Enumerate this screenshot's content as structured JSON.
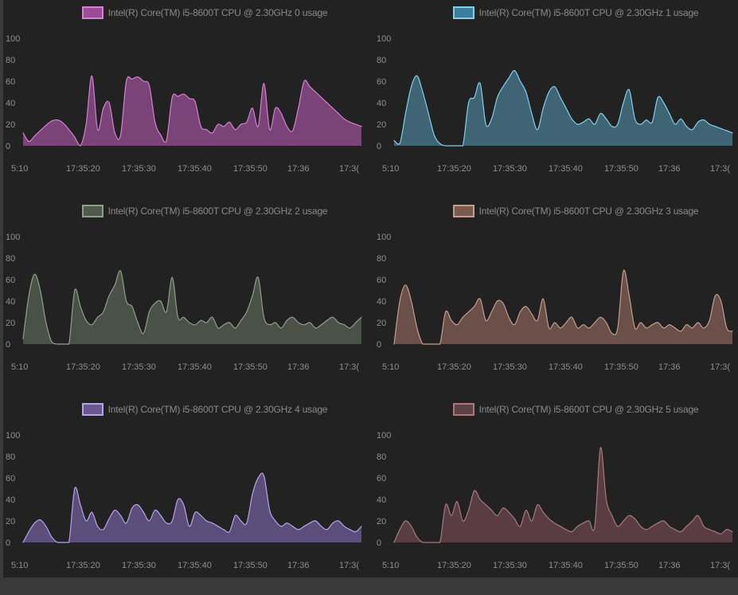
{
  "chart_data": [
    {
      "type": "area",
      "series": [
        {
          "name": "Intel(R) Core(TM) i5-8600T CPU @ 2.30GHz 0 usage",
          "x": [
            0,
            1,
            2,
            3,
            4,
            5,
            6,
            7,
            8,
            9,
            10,
            11,
            12,
            13,
            14,
            15,
            16,
            17,
            18,
            19,
            20,
            21,
            22,
            23,
            24,
            25,
            26,
            27,
            28,
            29,
            30,
            31,
            32,
            33,
            34,
            35,
            36,
            37,
            38,
            39,
            40,
            41,
            42,
            43,
            44,
            45,
            46,
            47,
            48,
            49,
            50,
            51,
            52,
            53,
            54,
            55,
            56,
            57,
            58,
            59
          ],
          "values": [
            12,
            4,
            9,
            14,
            19,
            23,
            24,
            21,
            15,
            8,
            0,
            20,
            65,
            15,
            35,
            40,
            12,
            10,
            60,
            62,
            64,
            60,
            56,
            22,
            10,
            5,
            45,
            46,
            48,
            44,
            41,
            18,
            15,
            12,
            20,
            18,
            22,
            15,
            20,
            22,
            35,
            18,
            58,
            15,
            35,
            30,
            18,
            14,
            35,
            60,
            55,
            50,
            45,
            40,
            35,
            30,
            25,
            22,
            20,
            18
          ]
        }
      ],
      "x_ticks": [
        "5:10",
        "17:35:20",
        "17:35:30",
        "17:35:40",
        "17:35:50",
        "17:36",
        "17:3("
      ],
      "y_ticks": [
        "100",
        "80",
        "60",
        "40",
        "20",
        "0"
      ],
      "ylim": [
        0,
        100
      ],
      "colors": {
        "fill": "#7a4478",
        "line": "#d87fd4",
        "swatch": "#9b4d98"
      }
    },
    {
      "type": "area",
      "series": [
        {
          "name": "Intel(R) Core(TM) i5-8600T CPU @ 2.30GHz 1 usage",
          "x": [
            0,
            1,
            2,
            3,
            4,
            5,
            6,
            7,
            8,
            9,
            10,
            11,
            12,
            13,
            14,
            15,
            16,
            17,
            18,
            19,
            20,
            21,
            22,
            23,
            24,
            25,
            26,
            27,
            28,
            29,
            30,
            31,
            32,
            33,
            34,
            35,
            36,
            37,
            38,
            39,
            40,
            41,
            42,
            43,
            44,
            45,
            46,
            47,
            48,
            49,
            50,
            51,
            52,
            53,
            54,
            55,
            56,
            57,
            58,
            59
          ],
          "values": [
            5,
            2,
            30,
            55,
            65,
            50,
            30,
            10,
            2,
            0,
            0,
            0,
            0,
            40,
            45,
            58,
            20,
            25,
            45,
            55,
            63,
            70,
            60,
            50,
            30,
            15,
            35,
            50,
            55,
            45,
            35,
            25,
            20,
            22,
            25,
            20,
            30,
            25,
            18,
            20,
            40,
            52,
            25,
            20,
            24,
            22,
            45,
            40,
            30,
            20,
            25,
            18,
            15,
            22,
            24,
            20,
            18,
            16,
            14,
            12
          ]
        }
      ],
      "x_ticks": [
        "5:10",
        "17:35:20",
        "17:35:30",
        "17:35:40",
        "17:35:50",
        "17:36",
        "17:3("
      ],
      "y_ticks": [
        "100",
        "80",
        "60",
        "40",
        "20",
        "0"
      ],
      "ylim": [
        0,
        100
      ],
      "colors": {
        "fill": "#3f6574",
        "line": "#7fd0ee",
        "swatch": "#3d7f9a"
      }
    },
    {
      "type": "area",
      "series": [
        {
          "name": "Intel(R) Core(TM) i5-8600T CPU @ 2.30GHz 2 usage",
          "x": [
            0,
            1,
            2,
            3,
            4,
            5,
            6,
            7,
            8,
            9,
            10,
            11,
            12,
            13,
            14,
            15,
            16,
            17,
            18,
            19,
            20,
            21,
            22,
            23,
            24,
            25,
            26,
            27,
            28,
            29,
            30,
            31,
            32,
            33,
            34,
            35,
            36,
            37,
            38,
            39,
            40,
            41,
            42,
            43,
            44,
            45,
            46,
            47,
            48,
            49,
            50,
            51,
            52,
            53,
            54,
            55,
            56,
            57,
            58,
            59
          ],
          "values": [
            5,
            45,
            65,
            50,
            20,
            2,
            0,
            0,
            0,
            50,
            35,
            22,
            18,
            25,
            30,
            45,
            55,
            68,
            40,
            35,
            20,
            10,
            30,
            38,
            40,
            30,
            62,
            25,
            25,
            20,
            18,
            22,
            20,
            25,
            15,
            18,
            20,
            15,
            22,
            30,
            45,
            62,
            25,
            18,
            20,
            15,
            22,
            25,
            20,
            18,
            20,
            15,
            18,
            22,
            25,
            20,
            18,
            15,
            20,
            25
          ]
        }
      ],
      "x_ticks": [
        "5:10",
        "17:35:20",
        "17:35:30",
        "17:35:40",
        "17:35:50",
        "17:36",
        "17:3("
      ],
      "y_ticks": [
        "100",
        "80",
        "60",
        "40",
        "20",
        "0"
      ],
      "ylim": [
        0,
        100
      ],
      "colors": {
        "fill": "#4a5248",
        "line": "#8f9e8c",
        "swatch": "#4f5a4d"
      }
    },
    {
      "type": "area",
      "series": [
        {
          "name": "Intel(R) Core(TM) i5-8600T CPU @ 2.30GHz 3 usage",
          "x": [
            0,
            1,
            2,
            3,
            4,
            5,
            6,
            7,
            8,
            9,
            10,
            11,
            12,
            13,
            14,
            15,
            16,
            17,
            18,
            19,
            20,
            21,
            22,
            23,
            24,
            25,
            26,
            27,
            28,
            29,
            30,
            31,
            32,
            33,
            34,
            35,
            36,
            37,
            38,
            39,
            40,
            41,
            42,
            43,
            44,
            45,
            46,
            47,
            48,
            49,
            50,
            51,
            52,
            53,
            54,
            55,
            56,
            57,
            58,
            59
          ],
          "values": [
            0,
            40,
            55,
            40,
            15,
            0,
            0,
            0,
            0,
            30,
            22,
            18,
            25,
            30,
            35,
            42,
            22,
            30,
            40,
            38,
            25,
            18,
            30,
            35,
            28,
            22,
            42,
            15,
            20,
            15,
            20,
            25,
            15,
            18,
            15,
            20,
            25,
            20,
            10,
            15,
            68,
            45,
            15,
            20,
            15,
            18,
            20,
            15,
            18,
            15,
            12,
            18,
            15,
            20,
            15,
            22,
            45,
            40,
            15,
            12
          ]
        }
      ],
      "x_ticks": [
        "5:10",
        "17:35:20",
        "17:35:30",
        "17:35:40",
        "17:35:50",
        "17:36",
        "17:3("
      ],
      "y_ticks": [
        "100",
        "80",
        "60",
        "40",
        "20",
        "0"
      ],
      "ylim": [
        0,
        100
      ],
      "colors": {
        "fill": "#6a5048",
        "line": "#c69c8c",
        "swatch": "#7a5a4e"
      }
    },
    {
      "type": "area",
      "series": [
        {
          "name": "Intel(R) Core(TM) i5-8600T CPU @ 2.30GHz 4 usage",
          "x": [
            0,
            1,
            2,
            3,
            4,
            5,
            6,
            7,
            8,
            9,
            10,
            11,
            12,
            13,
            14,
            15,
            16,
            17,
            18,
            19,
            20,
            21,
            22,
            23,
            24,
            25,
            26,
            27,
            28,
            29,
            30,
            31,
            32,
            33,
            34,
            35,
            36,
            37,
            38,
            39,
            40,
            41,
            42,
            43,
            44,
            45,
            46,
            47,
            48,
            49,
            50,
            51,
            52,
            53,
            54,
            55,
            56,
            57,
            58,
            59
          ],
          "values": [
            0,
            10,
            18,
            21,
            15,
            5,
            0,
            0,
            0,
            50,
            35,
            20,
            28,
            15,
            12,
            22,
            30,
            25,
            18,
            32,
            35,
            28,
            20,
            30,
            25,
            18,
            20,
            40,
            35,
            15,
            28,
            25,
            20,
            18,
            15,
            12,
            10,
            25,
            20,
            18,
            45,
            60,
            62,
            30,
            20,
            15,
            18,
            15,
            12,
            15,
            18,
            20,
            15,
            12,
            18,
            20,
            15,
            12,
            10,
            15
          ]
        }
      ],
      "x_ticks": [
        "5:10",
        "17:35:20",
        "17:35:30",
        "17:35:40",
        "17:35:50",
        "17:36",
        "17:3("
      ],
      "y_ticks": [
        "100",
        "80",
        "60",
        "40",
        "20",
        "0"
      ],
      "ylim": [
        0,
        100
      ],
      "colors": {
        "fill": "#5c4d7a",
        "line": "#b4a4ee",
        "swatch": "#6a5690"
      }
    },
    {
      "type": "area",
      "series": [
        {
          "name": "Intel(R) Core(TM) i5-8600T CPU @ 2.30GHz 5 usage",
          "x": [
            0,
            1,
            2,
            3,
            4,
            5,
            6,
            7,
            8,
            9,
            10,
            11,
            12,
            13,
            14,
            15,
            16,
            17,
            18,
            19,
            20,
            21,
            22,
            23,
            24,
            25,
            26,
            27,
            28,
            29,
            30,
            31,
            32,
            33,
            34,
            35,
            36,
            37,
            38,
            39,
            40,
            41,
            42,
            43,
            44,
            45,
            46,
            47,
            48,
            49,
            50,
            51,
            52,
            53,
            54,
            55,
            56,
            57,
            58,
            59
          ],
          "values": [
            0,
            12,
            20,
            15,
            5,
            0,
            0,
            0,
            0,
            35,
            25,
            38,
            20,
            30,
            48,
            40,
            35,
            30,
            25,
            32,
            28,
            22,
            15,
            30,
            20,
            35,
            28,
            22,
            18,
            15,
            12,
            10,
            15,
            18,
            20,
            15,
            88,
            40,
            25,
            15,
            20,
            25,
            22,
            15,
            12,
            15,
            18,
            20,
            15,
            12,
            10,
            15,
            20,
            25,
            15,
            12,
            10,
            8,
            12,
            10
          ]
        }
      ],
      "x_ticks": [
        "5:10",
        "17:35:20",
        "17:35:30",
        "17:35:40",
        "17:35:50",
        "17:36",
        "17:3("
      ],
      "y_ticks": [
        "100",
        "80",
        "60",
        "40",
        "20",
        "0"
      ],
      "ylim": [
        0,
        100
      ],
      "colors": {
        "fill": "#5a3d42",
        "line": "#a97880",
        "swatch": "#5e4146"
      }
    }
  ]
}
